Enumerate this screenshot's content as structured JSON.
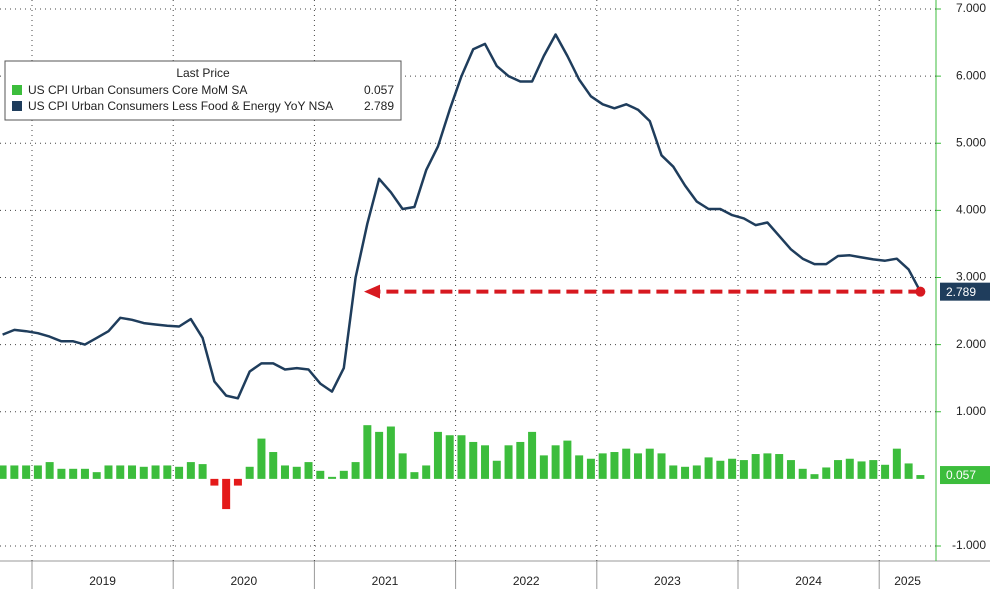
{
  "chart_data": {
    "type": "bar_line",
    "legend_title": "Last Price",
    "year_labels": [
      "2019",
      "2020",
      "2021",
      "2022",
      "2023",
      "2024",
      "2025"
    ],
    "ylim": [
      -1,
      7
    ],
    "yticks": [
      {
        "value": -1,
        "label": "-1.000"
      },
      {
        "value": 1,
        "label": "1.000"
      },
      {
        "value": 2,
        "label": "2.000"
      },
      {
        "value": 3,
        "label": "3.000"
      },
      {
        "value": 4,
        "label": "4.000"
      },
      {
        "value": 5,
        "label": "5.000"
      },
      {
        "value": 6,
        "label": "6.000"
      },
      {
        "value": 7,
        "label": "7.000"
      }
    ],
    "grid": true,
    "series": [
      {
        "name": "US CPI Urban Consumers Core MoM SA",
        "type": "bar",
        "color": "#3cbd3c",
        "negative_color": "#e41a1a",
        "values": [
          0.2,
          0.2,
          0.2,
          0.2,
          0.25,
          0.15,
          0.15,
          0.15,
          0.1,
          0.2,
          0.2,
          0.2,
          0.18,
          0.2,
          0.2,
          0.18,
          0.25,
          0.22,
          -0.1,
          -0.45,
          -0.1,
          0.18,
          0.6,
          0.4,
          0.2,
          0.18,
          0.25,
          0.12,
          0.03,
          0.12,
          0.25,
          0.8,
          0.7,
          0.78,
          0.38,
          0.1,
          0.2,
          0.7,
          0.65,
          0.65,
          0.55,
          0.5,
          0.27,
          0.5,
          0.55,
          0.7,
          0.35,
          0.5,
          0.57,
          0.35,
          0.3,
          0.38,
          0.4,
          0.45,
          0.38,
          0.45,
          0.38,
          0.2,
          0.18,
          0.2,
          0.32,
          0.27,
          0.3,
          0.28,
          0.37,
          0.38,
          0.37,
          0.28,
          0.15,
          0.07,
          0.17,
          0.28,
          0.3,
          0.26,
          0.28,
          0.21,
          0.45,
          0.23,
          0.057
        ]
      },
      {
        "name": "US CPI Urban Consumers Less Food & Energy YoY NSA",
        "type": "line",
        "color": "#1f3d5c",
        "values": [
          2.15,
          2.22,
          2.2,
          2.17,
          2.12,
          2.05,
          2.05,
          2.0,
          2.1,
          2.2,
          2.4,
          2.37,
          2.32,
          2.3,
          2.28,
          2.27,
          2.38,
          2.1,
          1.45,
          1.24,
          1.2,
          1.6,
          1.72,
          1.72,
          1.63,
          1.65,
          1.63,
          1.42,
          1.3,
          1.65,
          3.0,
          3.8,
          4.47,
          4.27,
          4.02,
          4.05,
          4.6,
          4.95,
          5.5,
          6.0,
          6.4,
          6.48,
          6.15,
          6.0,
          5.92,
          5.92,
          6.3,
          6.62,
          6.3,
          5.95,
          5.7,
          5.58,
          5.52,
          5.58,
          5.5,
          5.33,
          4.82,
          4.65,
          4.37,
          4.13,
          4.02,
          4.02,
          3.93,
          3.88,
          3.78,
          3.82,
          3.62,
          3.42,
          3.28,
          3.2,
          3.2,
          3.32,
          3.33,
          3.3,
          3.27,
          3.25,
          3.28,
          3.12,
          2.789
        ]
      }
    ]
  }
}
